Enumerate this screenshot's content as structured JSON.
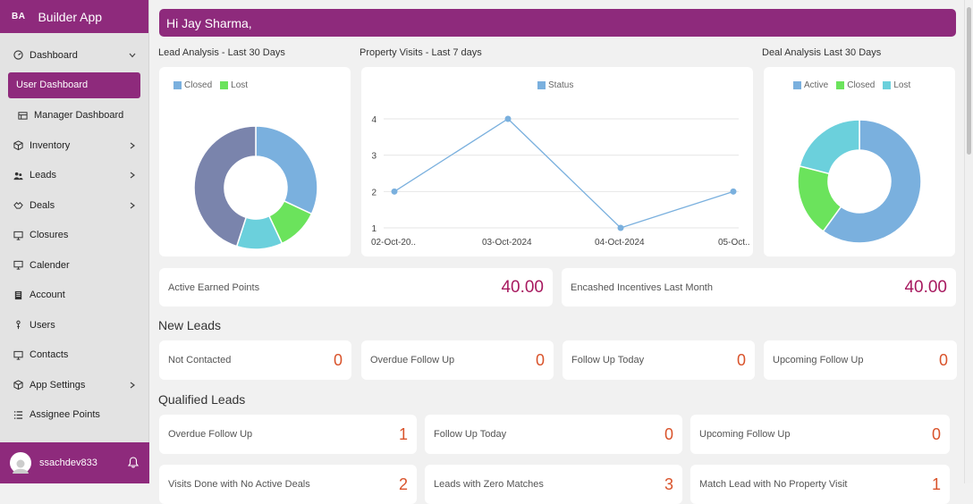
{
  "app": {
    "logo": "BA",
    "name": "Builder App"
  },
  "sidebar": {
    "items": [
      {
        "label": "Dashboard",
        "icon": "dashboard-icon",
        "chevron": "down"
      },
      {
        "label": "User Dashboard",
        "icon": "",
        "active": true
      },
      {
        "label": "Manager Dashboard",
        "icon": "grid-icon"
      },
      {
        "label": "Inventory",
        "icon": "box-icon",
        "chevron": "right"
      },
      {
        "label": "Leads",
        "icon": "users-icon",
        "chevron": "right"
      },
      {
        "label": "Deals",
        "icon": "handshake-icon",
        "chevron": "right"
      },
      {
        "label": "Closures",
        "icon": "monitor-icon"
      },
      {
        "label": "Calender",
        "icon": "calendar-icon"
      },
      {
        "label": "Account",
        "icon": "account-icon"
      },
      {
        "label": "Users",
        "icon": "user-icon"
      },
      {
        "label": "Contacts",
        "icon": "contacts-icon"
      },
      {
        "label": "App Settings",
        "icon": "settings-icon",
        "chevron": "right"
      },
      {
        "label": "Assignee Points",
        "icon": "list-icon"
      }
    ],
    "user": {
      "name": "ssachdev833"
    }
  },
  "greeting": "Hi Jay Sharma,",
  "sections": {
    "lead_analysis": "Lead Analysis - Last 30 Days",
    "property_visits": "Property Visits - Last 7 days",
    "deal_analysis": "Deal Analysis Last 30 Days"
  },
  "colors": {
    "accent": "#8e2a7c",
    "blue": "#7ab0de",
    "green": "#6be35c",
    "teal": "#6bd0dc",
    "slate": "#7a84ac",
    "value_orange": "#d9532b",
    "value_magenta": "#a7195f"
  },
  "chart_data": [
    {
      "type": "pie",
      "legend": [
        "Closed",
        "Lost"
      ],
      "slices": [
        {
          "value": 32,
          "color": "#7ab0de"
        },
        {
          "value": 11,
          "color": "#6be35c"
        },
        {
          "value": 12,
          "color": "#6bd0dc"
        },
        {
          "value": 45,
          "color": "#7a84ac"
        }
      ],
      "legend_colors": [
        "#7ab0de",
        "#6be35c"
      ]
    },
    {
      "type": "line",
      "legend": [
        "Status"
      ],
      "categories": [
        "02-Oct-20..",
        "03-Oct-2024",
        "04-Oct-2024",
        "05-Oct.."
      ],
      "series": [
        {
          "name": "Status",
          "values": [
            2,
            4,
            1,
            2
          ]
        }
      ],
      "yticks": [
        "1",
        "2",
        "3",
        "4"
      ],
      "ylim": [
        1,
        4
      ],
      "grid": true
    },
    {
      "type": "pie",
      "legend": [
        "Active",
        "Closed",
        "Lost"
      ],
      "legend_colors": [
        "#7ab0de",
        "#6be35c",
        "#6bd0dc"
      ],
      "slices": [
        {
          "value": 60,
          "color": "#7ab0de"
        },
        {
          "value": 19,
          "color": "#6be35c"
        },
        {
          "value": 21,
          "color": "#6bd0dc"
        }
      ]
    }
  ],
  "points": [
    {
      "label": "Active Earned Points",
      "value": "40.00"
    },
    {
      "label": "Encashed Incentives Last Month",
      "value": "40.00"
    }
  ],
  "new_leads": {
    "title": "New Leads",
    "items": [
      {
        "label": "Not Contacted",
        "value": "0"
      },
      {
        "label": "Overdue Follow Up",
        "value": "0"
      },
      {
        "label": "Follow Up Today",
        "value": "0"
      },
      {
        "label": "Upcoming Follow Up",
        "value": "0"
      }
    ]
  },
  "qualified_leads": {
    "title": "Qualified Leads",
    "items": [
      {
        "label": "Overdue Follow Up",
        "value": "1"
      },
      {
        "label": "Follow Up Today",
        "value": "0"
      },
      {
        "label": "Upcoming Follow Up",
        "value": "0"
      }
    ],
    "partial": [
      {
        "label": "Visits Done with No Active Deals",
        "value": "2"
      },
      {
        "label": "Leads with Zero Matches",
        "value": "3"
      },
      {
        "label": "Match Lead with No Property Visit",
        "value": "1"
      }
    ]
  }
}
